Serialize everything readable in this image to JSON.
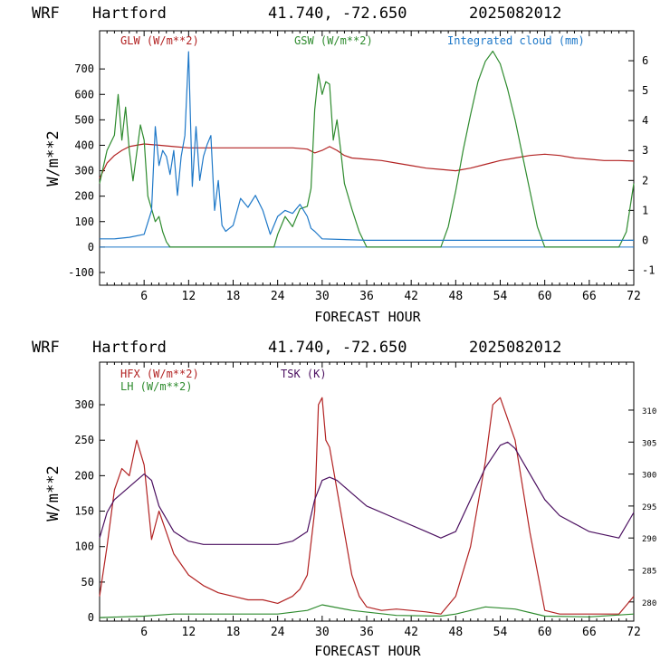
{
  "panels": [
    {
      "header": {
        "model": "WRF",
        "location": "Hartford",
        "coords": "41.740, -72.650",
        "run": "2025082012"
      },
      "xlabel": "FORECAST HOUR",
      "ylabel": "W/m**2"
    },
    {
      "header": {
        "model": "WRF",
        "location": "Hartford",
        "coords": "41.740, -72.650",
        "run": "2025082012"
      },
      "xlabel": "FORECAST HOUR",
      "ylabel": "W/m**2"
    }
  ],
  "chart_data": [
    {
      "type": "line",
      "x_ticks": [
        6,
        12,
        18,
        24,
        30,
        36,
        42,
        48,
        54,
        60,
        66,
        72
      ],
      "xlim": [
        0,
        72
      ],
      "ylim_left": [
        -150,
        850
      ],
      "ytick_left": [
        -100,
        0,
        100,
        200,
        300,
        400,
        500,
        600,
        700
      ],
      "ylim_right": [
        -1.5,
        7
      ],
      "ytick_right": [
        -1,
        0,
        1,
        2,
        3,
        4,
        5,
        6
      ],
      "grid": false,
      "legend_placement": "top",
      "series": [
        {
          "name": "GLW (W/m**2)",
          "axis": "left",
          "color": "#b22222",
          "x": [
            0,
            1,
            2,
            3,
            4,
            5,
            6,
            8,
            10,
            12,
            14,
            16,
            18,
            20,
            22,
            24,
            26,
            28,
            29,
            30,
            31,
            32,
            33,
            34,
            36,
            38,
            40,
            42,
            44,
            46,
            48,
            50,
            52,
            54,
            56,
            58,
            60,
            62,
            64,
            66,
            68,
            70,
            72
          ],
          "y": [
            270,
            330,
            360,
            380,
            395,
            400,
            405,
            400,
            395,
            390,
            390,
            390,
            390,
            390,
            390,
            390,
            390,
            385,
            370,
            380,
            395,
            380,
            360,
            350,
            345,
            340,
            330,
            320,
            310,
            305,
            300,
            310,
            325,
            340,
            350,
            360,
            365,
            360,
            350,
            345,
            340,
            340,
            338
          ]
        },
        {
          "name": "GSW (W/m**2)",
          "axis": "left",
          "color": "#2e8b2e",
          "x": [
            0,
            1,
            2,
            2.5,
            3,
            3.5,
            4,
            4.5,
            5,
            5.5,
            6,
            6.5,
            7,
            7.5,
            8,
            8.5,
            9,
            9.5,
            10,
            23.5,
            24,
            25,
            26,
            27,
            28,
            28.5,
            29,
            29.5,
            30,
            30.5,
            31,
            31.5,
            32,
            32.5,
            33,
            34,
            35,
            36,
            46,
            47,
            48,
            49,
            50,
            51,
            52,
            53,
            54,
            55,
            56,
            57,
            58,
            59,
            60,
            70,
            71,
            72
          ],
          "y": [
            250,
            380,
            440,
            600,
            420,
            550,
            380,
            260,
            370,
            480,
            420,
            200,
            150,
            100,
            120,
            60,
            20,
            0,
            0,
            0,
            50,
            120,
            80,
            150,
            160,
            230,
            540,
            680,
            600,
            650,
            640,
            420,
            500,
            380,
            250,
            150,
            60,
            0,
            0,
            80,
            220,
            380,
            520,
            650,
            730,
            770,
            720,
            620,
            500,
            360,
            220,
            80,
            0,
            0,
            60,
            250
          ]
        },
        {
          "name": "Integrated cloud (mm)",
          "axis": "right",
          "color": "#1e78c8",
          "x": [
            0,
            2,
            4,
            6,
            7,
            7.5,
            8,
            8.5,
            9,
            9.5,
            10,
            10.5,
            11,
            11.5,
            12,
            12.5,
            13,
            13.5,
            14,
            14.5,
            15,
            15.5,
            16,
            16.5,
            17,
            18,
            19,
            20,
            21,
            22,
            23,
            24,
            25,
            26,
            27,
            28,
            28.5,
            29,
            30,
            36,
            48,
            60,
            72
          ],
          "y": [
            0.05,
            0.05,
            0.1,
            0.2,
            1.0,
            3.8,
            2.5,
            3.0,
            2.8,
            2.2,
            3.0,
            1.5,
            2.8,
            3.5,
            6.3,
            1.8,
            3.8,
            2.0,
            2.8,
            3.2,
            3.5,
            1.0,
            2.0,
            0.5,
            0.3,
            0.5,
            1.4,
            1.1,
            1.5,
            1.0,
            0.2,
            0.8,
            1.0,
            0.9,
            1.2,
            0.8,
            0.4,
            0.3,
            0.05,
            0.0,
            0.0,
            0.0,
            0.0
          ]
        }
      ]
    },
    {
      "type": "line",
      "x_ticks": [
        6,
        12,
        18,
        24,
        30,
        36,
        42,
        48,
        54,
        60,
        66,
        72
      ],
      "xlim": [
        0,
        72
      ],
      "ylim_left": [
        -5,
        360
      ],
      "ytick_left": [
        0,
        50,
        100,
        150,
        200,
        250,
        300
      ],
      "ylim_right": [
        277,
        317.5
      ],
      "ytick_right": [
        280,
        285,
        290,
        295,
        300,
        305,
        310
      ],
      "grid": false,
      "legend_placement": "top",
      "series": [
        {
          "name": "HFX (W/m**2)",
          "axis": "left",
          "color": "#b22222",
          "x": [
            0,
            1,
            2,
            3,
            4,
            5,
            6,
            7,
            8,
            9,
            10,
            12,
            14,
            16,
            18,
            20,
            22,
            24,
            26,
            27,
            28,
            29,
            29.5,
            30,
            30.5,
            31,
            32,
            33,
            34,
            35,
            36,
            38,
            40,
            44,
            46,
            48,
            50,
            52,
            53,
            54,
            56,
            58,
            60,
            62,
            66,
            70,
            72
          ],
          "y": [
            30,
            100,
            180,
            210,
            200,
            250,
            215,
            110,
            150,
            120,
            90,
            60,
            45,
            35,
            30,
            25,
            25,
            20,
            30,
            40,
            60,
            150,
            300,
            310,
            250,
            240,
            180,
            120,
            60,
            30,
            15,
            10,
            12,
            8,
            5,
            30,
            100,
            220,
            300,
            310,
            250,
            120,
            10,
            5,
            5,
            5,
            30
          ]
        },
        {
          "name": "LH (W/m**2)",
          "axis": "left",
          "color": "#2e8b2e",
          "x": [
            0,
            6,
            10,
            18,
            24,
            28,
            30,
            34,
            40,
            46,
            48,
            52,
            56,
            60,
            66,
            72
          ],
          "y": [
            0,
            2,
            5,
            5,
            5,
            10,
            18,
            10,
            3,
            2,
            5,
            15,
            12,
            2,
            1,
            5
          ]
        },
        {
          "name": "TSK (K)",
          "axis": "right",
          "color": "#4b1060",
          "x": [
            0,
            1,
            2,
            3,
            4,
            5,
            6,
            7,
            8,
            10,
            12,
            14,
            18,
            22,
            24,
            26,
            28,
            29,
            30,
            31,
            32,
            33,
            34,
            36,
            40,
            44,
            46,
            48,
            50,
            52,
            54,
            55,
            56,
            58,
            60,
            62,
            66,
            70,
            72
          ],
          "y": [
            290,
            294,
            296,
            297,
            298,
            299,
            300,
            299,
            295,
            291,
            289.5,
            289,
            289,
            289,
            289,
            289.5,
            291,
            296,
            299,
            299.5,
            299,
            298,
            297,
            295,
            293,
            291,
            290,
            291,
            296,
            301,
            304.5,
            305,
            304,
            300,
            296,
            293.5,
            291,
            290,
            294
          ]
        }
      ]
    }
  ]
}
